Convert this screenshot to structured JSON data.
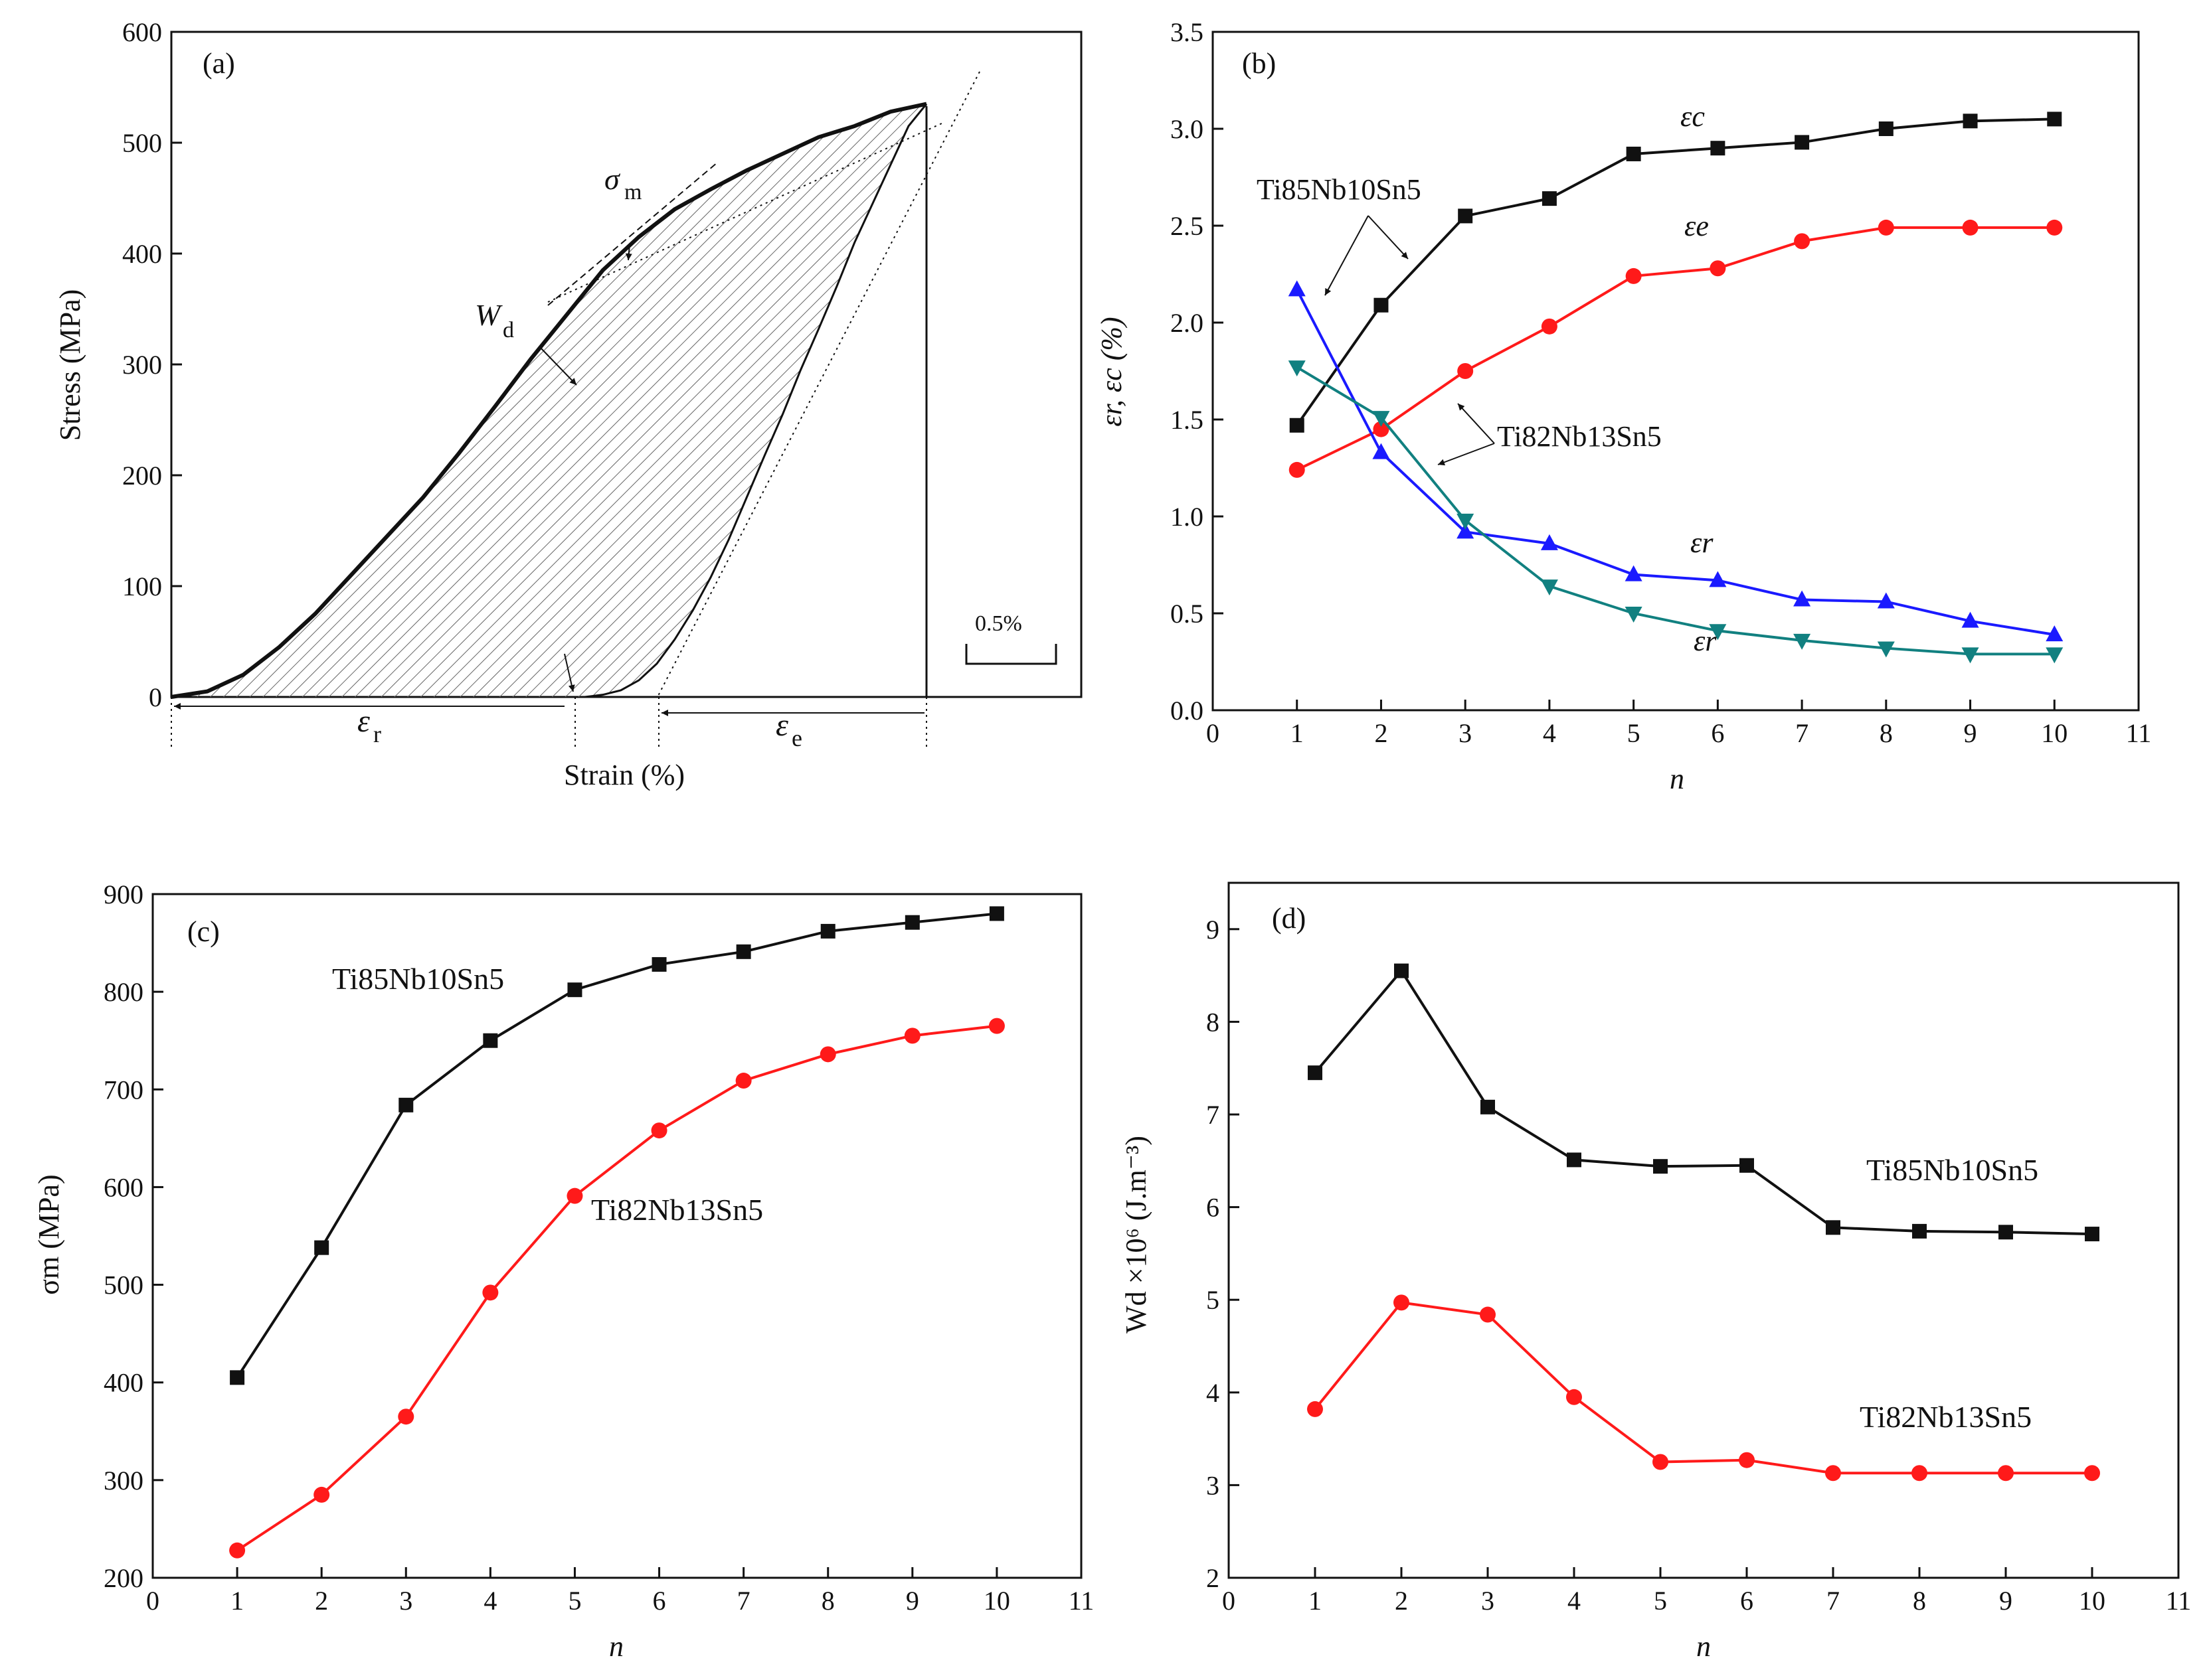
{
  "colors": {
    "black": "#111111",
    "red": "#ff1a1a",
    "blue": "#1a1aff",
    "teal": "#118080"
  },
  "chart_data": [
    {
      "panel": "(a)",
      "type": "line",
      "title": "",
      "xlabel": "Strain (%)",
      "ylabel": "Stress (MPa)",
      "ylim": [
        0,
        600
      ],
      "yticks": [
        "0",
        "100",
        "200",
        "300",
        "400",
        "500",
        "600"
      ],
      "scale_bar": "0.5%",
      "annotations": {
        "sigma_m": "σ",
        "sigma_m_sub": "m",
        "wd": "W",
        "wd_sub": "d",
        "er": "ε",
        "er_sub": "r",
        "ee": "ε",
        "ee_sub": "e"
      },
      "loading": {
        "strain": [
          0,
          0.2,
          0.4,
          0.6,
          0.8,
          1.0,
          1.2,
          1.4,
          1.6,
          1.8,
          2.0,
          2.2,
          2.4,
          2.6,
          2.8,
          3.0,
          3.2,
          3.4,
          3.6,
          3.8,
          4.0,
          4.2
        ],
        "stress": [
          0,
          5,
          20,
          45,
          75,
          110,
          145,
          180,
          220,
          262,
          305,
          345,
          385,
          415,
          440,
          458,
          475,
          490,
          505,
          515,
          528,
          535
        ]
      },
      "unloading": {
        "strain": [
          4.2,
          4.1,
          4.0,
          3.9,
          3.8,
          3.7,
          3.6,
          3.5,
          3.4,
          3.3,
          3.2,
          3.1,
          3.0,
          2.9,
          2.8,
          2.7,
          2.6,
          2.5,
          2.4,
          2.3
        ],
        "stress": [
          535,
          515,
          480,
          445,
          410,
          370,
          332,
          295,
          255,
          218,
          180,
          142,
          108,
          78,
          52,
          30,
          15,
          6,
          2,
          0
        ]
      }
    },
    {
      "panel": "(b)",
      "type": "line",
      "xlabel": "n",
      "ylabel": "εr, εc (%)",
      "xlim": [
        0,
        11
      ],
      "ylim": [
        0,
        3.5
      ],
      "xticks": [
        "0",
        "1",
        "2",
        "3",
        "4",
        "5",
        "6",
        "7",
        "8",
        "9",
        "10",
        "11"
      ],
      "yticks": [
        "0.0",
        "0.5",
        "1.0",
        "1.5",
        "2.0",
        "2.5",
        "3.0",
        "3.5"
      ],
      "x": [
        1,
        2,
        3,
        4,
        5,
        6,
        7,
        8,
        9,
        10
      ],
      "series": [
        {
          "name": "εc Ti85Nb10Sn5",
          "marker": "square",
          "color": "#111111",
          "values": [
            1.47,
            2.09,
            2.55,
            2.64,
            2.87,
            2.9,
            2.93,
            3.0,
            3.04,
            3.05
          ]
        },
        {
          "name": "εe Ti82Nb13Sn5",
          "marker": "circle",
          "color": "#ff1a1a",
          "values": [
            1.24,
            1.45,
            1.75,
            1.98,
            2.24,
            2.28,
            2.42,
            2.49,
            2.49,
            2.49
          ]
        },
        {
          "name": "εr Ti85Nb10Sn5",
          "marker": "triangle-up",
          "color": "#1a1aff",
          "values": [
            2.17,
            1.33,
            0.92,
            0.86,
            0.7,
            0.67,
            0.57,
            0.56,
            0.46,
            0.39
          ]
        },
        {
          "name": "εr Ti82Nb13Sn5",
          "marker": "triangle-down",
          "color": "#118080",
          "values": [
            1.77,
            1.51,
            0.98,
            0.64,
            0.5,
            0.41,
            0.36,
            0.32,
            0.29,
            0.29
          ]
        }
      ],
      "labels": {
        "ti85": "Ti85Nb10Sn5",
        "ti82": "Ti82Nb13Sn5",
        "ec": "εc",
        "ee": "εe",
        "er1": "εr",
        "er2": "εr"
      }
    },
    {
      "panel": "(c)",
      "type": "line",
      "xlabel": "n",
      "ylabel": "σm (MPa)",
      "xlim": [
        0,
        11
      ],
      "ylim": [
        200,
        900
      ],
      "xticks": [
        "0",
        "1",
        "2",
        "3",
        "4",
        "5",
        "6",
        "7",
        "8",
        "9",
        "10",
        "11"
      ],
      "yticks": [
        "200",
        "300",
        "400",
        "500",
        "600",
        "700",
        "800",
        "900"
      ],
      "x": [
        1,
        2,
        3,
        4,
        5,
        6,
        7,
        8,
        9,
        10
      ],
      "series": [
        {
          "name": "Ti85Nb10Sn5",
          "marker": "square",
          "color": "#111111",
          "values": [
            405,
            538,
            684,
            750,
            802,
            828,
            841,
            862,
            871,
            880
          ]
        },
        {
          "name": "Ti82Nb13Sn5",
          "marker": "circle",
          "color": "#ff1a1a",
          "values": [
            228,
            285,
            365,
            492,
            591,
            658,
            709,
            736,
            755,
            765
          ]
        }
      ]
    },
    {
      "panel": "(d)",
      "type": "line",
      "xlabel": "n",
      "ylabel": "Wd ×10⁶ (J.m⁻³)",
      "xlim": [
        0,
        11
      ],
      "ylim": [
        2,
        9.5
      ],
      "xticks": [
        "0",
        "1",
        "2",
        "3",
        "4",
        "5",
        "6",
        "7",
        "8",
        "9",
        "10",
        "11"
      ],
      "yticks": [
        "2",
        "3",
        "4",
        "5",
        "6",
        "7",
        "8",
        "9"
      ],
      "x": [
        1,
        2,
        3,
        4,
        5,
        6,
        7,
        8,
        9,
        10
      ],
      "series": [
        {
          "name": "Ti85Nb10Sn5",
          "marker": "square",
          "color": "#111111",
          "values": [
            7.45,
            8.55,
            7.08,
            6.51,
            6.44,
            6.45,
            5.78,
            5.74,
            5.73,
            5.71
          ]
        },
        {
          "name": "Ti82Nb13Sn5",
          "marker": "circle",
          "color": "#ff1a1a",
          "values": [
            3.82,
            4.97,
            4.84,
            3.95,
            3.25,
            3.27,
            3.13,
            3.13,
            3.13,
            3.13
          ]
        }
      ]
    }
  ]
}
